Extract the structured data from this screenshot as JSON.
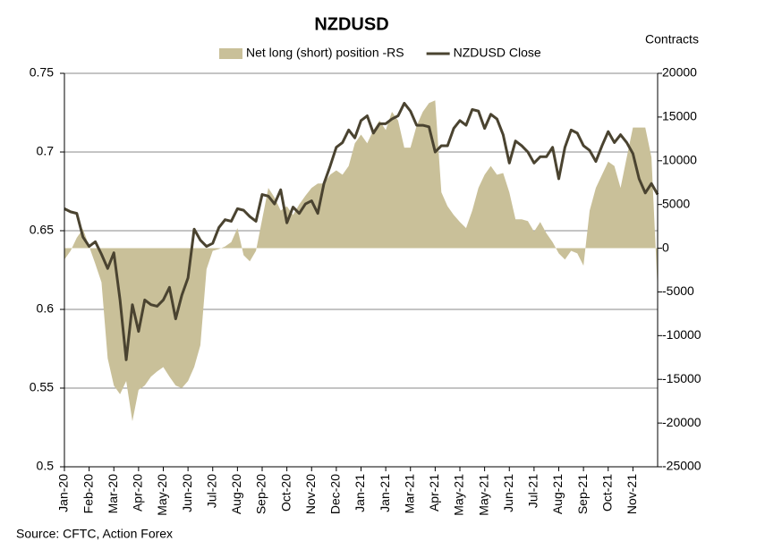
{
  "chart_data": {
    "type": "combo",
    "title": "NZDUSD",
    "y2_label": "Contracts",
    "source": "Source: CFTC, Action Forex",
    "categories": [
      "Jan-20",
      null,
      null,
      null,
      "Feb-20",
      null,
      null,
      null,
      "Mar-20",
      null,
      null,
      null,
      "Apr-20",
      null,
      null,
      null,
      "May-20",
      null,
      null,
      null,
      "Jun-20",
      null,
      null,
      null,
      "Jul-20",
      null,
      null,
      null,
      "Aug-20",
      null,
      null,
      null,
      "Sep-20",
      null,
      null,
      null,
      "Oct-20",
      null,
      null,
      null,
      "Nov-20",
      null,
      null,
      null,
      "Dec-20",
      null,
      null,
      null,
      "Jan-21",
      null,
      null,
      null,
      "Jan-21",
      null,
      null,
      null,
      "Mar-21",
      null,
      null,
      null,
      "Apr-21",
      null,
      null,
      null,
      "May-21",
      null,
      null,
      null,
      "May-21",
      null,
      null,
      null,
      "Jun-21",
      null,
      null,
      null,
      "Jul-21",
      null,
      null,
      null,
      "Aug-21",
      null,
      null,
      null,
      "Sep-21",
      null,
      null,
      null,
      "Oct-21",
      null,
      null,
      null,
      "Nov-21",
      null,
      null,
      null,
      null
    ],
    "series": [
      {
        "name": "Net long (short) position -RS",
        "type": "area",
        "axis": "y2",
        "color": "#c9c099",
        "values": [
          -1300,
          -300,
          1200,
          2200,
          200,
          -1800,
          -3900,
          -12600,
          -15700,
          -16700,
          -15200,
          -19800,
          -16200,
          -15700,
          -14700,
          -14100,
          -13600,
          -14700,
          -15700,
          -16000,
          -15200,
          -13600,
          -11100,
          -2400,
          -300,
          -100,
          200,
          700,
          2300,
          -800,
          -1500,
          -300,
          3300,
          6900,
          5800,
          4300,
          4800,
          3800,
          5000,
          6000,
          6900,
          7400,
          7400,
          8400,
          8900,
          8400,
          9400,
          12000,
          13000,
          12000,
          13500,
          14600,
          13500,
          15600,
          14600,
          11500,
          11500,
          14000,
          15600,
          16600,
          16900,
          6400,
          4800,
          3800,
          3000,
          2300,
          4300,
          6900,
          8400,
          9400,
          8400,
          8600,
          6400,
          3300,
          3300,
          3100,
          1900,
          3000,
          1700,
          700,
          -600,
          -1300,
          -300,
          -600,
          -2000,
          4300,
          6900,
          8400,
          9900,
          9400,
          6900,
          10400,
          13800,
          13800,
          13800,
          10400,
          -4900
        ]
      },
      {
        "name": "NZDUSD Close",
        "type": "line",
        "axis": "y",
        "color": "#4a4330",
        "values": [
          0.664,
          0.662,
          0.661,
          0.646,
          0.64,
          0.643,
          0.635,
          0.626,
          0.636,
          0.606,
          0.568,
          0.603,
          0.586,
          0.606,
          0.603,
          0.602,
          0.606,
          0.614,
          0.594,
          0.609,
          0.62,
          0.651,
          0.644,
          0.64,
          0.642,
          0.652,
          0.657,
          0.656,
          0.664,
          0.663,
          0.659,
          0.656,
          0.673,
          0.672,
          0.667,
          0.676,
          0.655,
          0.665,
          0.661,
          0.667,
          0.669,
          0.661,
          0.68,
          0.691,
          0.703,
          0.706,
          0.714,
          0.709,
          0.72,
          0.723,
          0.712,
          0.718,
          0.718,
          0.721,
          0.723,
          0.731,
          0.726,
          0.717,
          0.717,
          0.716,
          0.7,
          0.704,
          0.704,
          0.715,
          0.72,
          0.717,
          0.727,
          0.726,
          0.715,
          0.724,
          0.721,
          0.711,
          0.693,
          0.707,
          0.704,
          0.7,
          0.693,
          0.697,
          0.697,
          0.703,
          0.683,
          0.703,
          0.714,
          0.712,
          0.704,
          0.701,
          0.694,
          0.704,
          0.713,
          0.706,
          0.711,
          0.706,
          0.699,
          0.683,
          0.674,
          0.68,
          0.673
        ]
      }
    ],
    "ylim": [
      0.5,
      0.75
    ],
    "yticks": [
      0.5,
      0.55,
      0.6,
      0.65,
      0.7,
      0.75
    ],
    "y2lim": [
      -25000,
      20000
    ],
    "y2ticks": [
      -25000,
      -20000,
      -15000,
      -10000,
      -5000,
      0,
      5000,
      10000,
      15000,
      20000
    ],
    "grid": true,
    "legend": "top"
  }
}
